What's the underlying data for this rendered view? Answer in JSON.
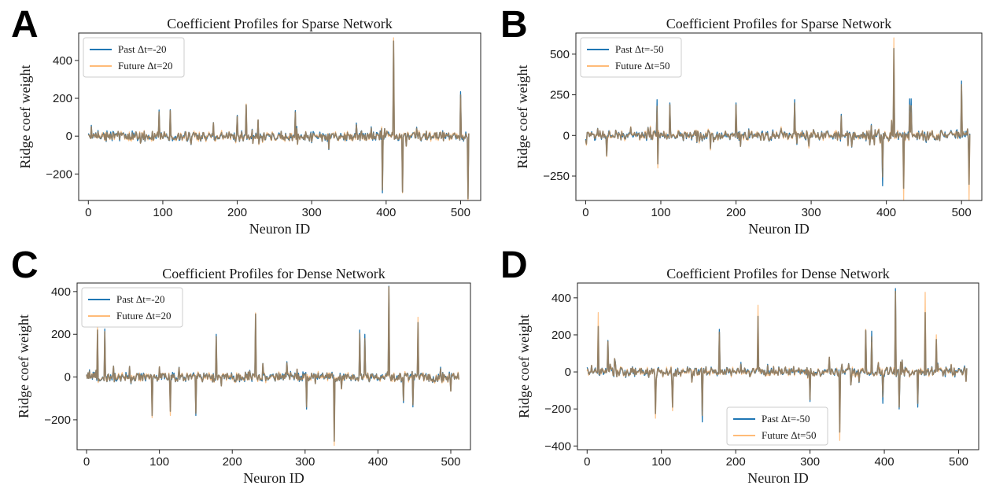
{
  "panels": [
    {
      "label": "A"
    },
    {
      "label": "B"
    },
    {
      "label": "C"
    },
    {
      "label": "D"
    }
  ],
  "colors": {
    "past": "#1f77b4",
    "future": "#ffbb78",
    "overlap": "#8c7b62"
  },
  "chart_data": [
    {
      "type": "line",
      "title": "Coefficient Profiles for Sparse Network",
      "xlabel": "Neuron ID",
      "ylabel": "Ridge coef weight",
      "xlim": [
        -13,
        527
      ],
      "ylim": [
        -340,
        545
      ],
      "xticks": [
        0,
        100,
        200,
        300,
        400,
        500
      ],
      "yticks": [
        -200,
        0,
        200,
        400
      ],
      "legend": {
        "position": "top-left"
      },
      "n_neurons": 512,
      "series": [
        {
          "name": "Past  Δt=-20"
        },
        {
          "name": "Future Δt=20"
        }
      ],
      "peaks": [
        [
          95,
          138,
          120
        ],
        [
          110,
          140,
          130
        ],
        [
          138,
          -45,
          -40
        ],
        [
          200,
          110,
          100
        ],
        [
          212,
          160,
          170
        ],
        [
          278,
          135,
          120
        ],
        [
          300,
          -35,
          -25
        ],
        [
          395,
          -300,
          -270
        ],
        [
          410,
          485,
          520
        ],
        [
          422,
          -290,
          -300
        ],
        [
          500,
          235,
          200
        ],
        [
          510,
          -320,
          -340
        ]
      ]
    },
    {
      "type": "line",
      "title": "Coefficient Profiles for Sparse Network",
      "xlabel": "Neuron ID",
      "ylabel": "Ridge coef weight",
      "xlim": [
        -13,
        527
      ],
      "ylim": [
        -400,
        630
      ],
      "xticks": [
        0,
        100,
        200,
        300,
        400,
        500
      ],
      "yticks": [
        -250,
        0,
        250,
        500
      ],
      "legend": {
        "position": "top-left"
      },
      "n_neurons": 512,
      "series": [
        {
          "name": "Past  Δt=-50"
        },
        {
          "name": "Future Δt=50"
        }
      ],
      "peaks": [
        [
          28,
          -120,
          -130
        ],
        [
          95,
          220,
          140
        ],
        [
          96,
          -150,
          -200
        ],
        [
          112,
          200,
          180
        ],
        [
          200,
          200,
          180
        ],
        [
          278,
          220,
          180
        ],
        [
          340,
          130,
          110
        ],
        [
          395,
          -310,
          -200
        ],
        [
          410,
          470,
          600
        ],
        [
          423,
          -250,
          -400
        ],
        [
          431,
          225,
          150
        ],
        [
          433,
          225,
          140
        ],
        [
          500,
          335,
          290
        ],
        [
          510,
          -200,
          -400
        ]
      ]
    },
    {
      "type": "line",
      "title": "Coefficient Profiles for Dense Network",
      "xlabel": "Neuron ID",
      "ylabel": "Ridge coef weight",
      "xlim": [
        -13,
        527
      ],
      "ylim": [
        -340,
        440
      ],
      "xticks": [
        0,
        100,
        200,
        300,
        400,
        500
      ],
      "yticks": [
        -200,
        0,
        200,
        400
      ],
      "legend": {
        "position": "top-left"
      },
      "n_neurons": 512,
      "series": [
        {
          "name": "Past  Δt=-20"
        },
        {
          "name": "Future Δt=20"
        }
      ],
      "peaks": [
        [
          15,
          200,
          240
        ],
        [
          25,
          225,
          200
        ],
        [
          90,
          -170,
          -190
        ],
        [
          115,
          -140,
          -180
        ],
        [
          150,
          -180,
          -160
        ],
        [
          178,
          200,
          180
        ],
        [
          232,
          290,
          300
        ],
        [
          302,
          -150,
          -130
        ],
        [
          340,
          -280,
          -320
        ],
        [
          375,
          220,
          190
        ],
        [
          382,
          200,
          160
        ],
        [
          415,
          425,
          420
        ],
        [
          435,
          -120,
          -100
        ],
        [
          455,
          230,
          280
        ],
        [
          448,
          -140,
          -120
        ]
      ]
    },
    {
      "type": "line",
      "title": "Coefficient Profiles for Dense Network",
      "xlabel": "Neuron ID",
      "ylabel": "Ridge coef weight",
      "xlim": [
        -13,
        527
      ],
      "ylim": [
        -420,
        480
      ],
      "xticks": [
        0,
        100,
        200,
        300,
        400,
        500
      ],
      "yticks": [
        -400,
        -200,
        0,
        200,
        400
      ],
      "legend": {
        "position": "bottom-center"
      },
      "n_neurons": 512,
      "series": [
        {
          "name": "Past  Δt=-50"
        },
        {
          "name": "Future Δt=50"
        }
      ],
      "peaks": [
        [
          15,
          170,
          320
        ],
        [
          28,
          170,
          160
        ],
        [
          92,
          -200,
          -250
        ],
        [
          115,
          -170,
          -210
        ],
        [
          155,
          -270,
          -200
        ],
        [
          178,
          230,
          200
        ],
        [
          230,
          240,
          360
        ],
        [
          300,
          -160,
          -140
        ],
        [
          340,
          -280,
          -370
        ],
        [
          375,
          220,
          230
        ],
        [
          383,
          220,
          160
        ],
        [
          398,
          -170,
          -100
        ],
        [
          415,
          450,
          420
        ],
        [
          420,
          -200,
          -180
        ],
        [
          445,
          -190,
          -150
        ],
        [
          455,
          210,
          430
        ],
        [
          470,
          150,
          200
        ]
      ]
    }
  ]
}
